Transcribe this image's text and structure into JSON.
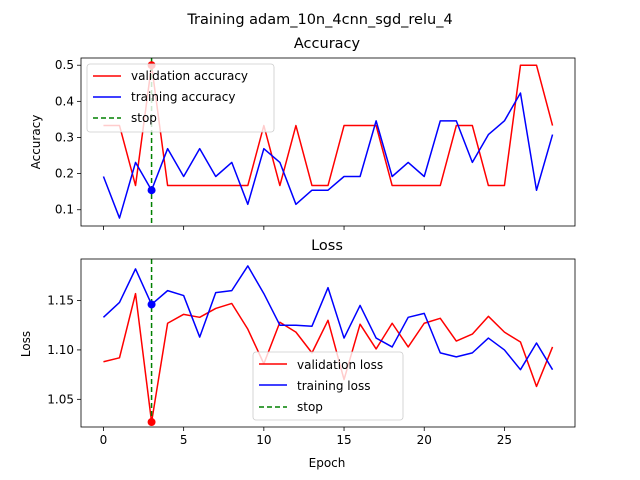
{
  "figure": {
    "suptitle": "Training adam_10n_4cnn_sgd_relu_4"
  },
  "chart_data": [
    {
      "type": "line",
      "title": "Accuracy",
      "xlabel": "",
      "ylabel": "Accuracy",
      "xlim": [
        -1.4,
        29.4
      ],
      "ylim": [
        0.055,
        0.52
      ],
      "xticks": [
        0,
        5,
        10,
        15,
        20,
        25
      ],
      "xtick_labels_visible": false,
      "yticks": [
        0.1,
        0.2,
        0.3,
        0.4,
        0.5
      ],
      "ytick_labels": [
        "0.1",
        "0.2",
        "0.3",
        "0.4",
        "0.5"
      ],
      "grid": false,
      "legend_loc": "upper-left",
      "x": [
        0,
        1,
        2,
        3,
        4,
        5,
        6,
        7,
        8,
        9,
        10,
        11,
        12,
        13,
        14,
        15,
        16,
        17,
        18,
        19,
        20,
        21,
        22,
        23,
        24,
        25,
        26,
        27,
        28
      ],
      "series": [
        {
          "name": "validation accuracy",
          "color": "#ff0000",
          "values": [
            0.333,
            0.333,
            0.167,
            0.5,
            0.167,
            0.167,
            0.167,
            0.167,
            0.167,
            0.167,
            0.333,
            0.167,
            0.333,
            0.167,
            0.167,
            0.333,
            0.333,
            0.333,
            0.167,
            0.167,
            0.167,
            0.167,
            0.333,
            0.333,
            0.167,
            0.167,
            0.5,
            0.5,
            0.333
          ]
        },
        {
          "name": "training accuracy",
          "color": "#0000ff",
          "values": [
            0.192,
            0.077,
            0.231,
            0.154,
            0.269,
            0.192,
            0.269,
            0.192,
            0.231,
            0.115,
            0.269,
            0.231,
            0.115,
            0.154,
            0.154,
            0.192,
            0.192,
            0.346,
            0.192,
            0.231,
            0.192,
            0.346,
            0.346,
            0.231,
            0.308,
            0.346,
            0.423,
            0.154,
            0.308
          ]
        }
      ],
      "stop": {
        "name": "stop",
        "x": 3,
        "color": "#008000"
      },
      "markers": [
        {
          "x": 3,
          "y": 0.5,
          "color": "#ff0000"
        },
        {
          "x": 3,
          "y": 0.154,
          "color": "#0000ff"
        }
      ]
    },
    {
      "type": "line",
      "title": "Loss",
      "xlabel": "Epoch",
      "ylabel": "Loss",
      "xlim": [
        -1.4,
        29.4
      ],
      "ylim": [
        1.022,
        1.192
      ],
      "xticks": [
        0,
        5,
        10,
        15,
        20,
        25
      ],
      "xtick_labels": [
        "0",
        "5",
        "10",
        "15",
        "20",
        "25"
      ],
      "yticks": [
        1.05,
        1.1,
        1.15
      ],
      "ytick_labels": [
        "1.05",
        "1.10",
        "1.15"
      ],
      "grid": false,
      "legend_loc": "lower-center",
      "x": [
        0,
        1,
        2,
        3,
        4,
        5,
        6,
        7,
        8,
        9,
        10,
        11,
        12,
        13,
        14,
        15,
        16,
        17,
        18,
        19,
        20,
        21,
        22,
        23,
        24,
        25,
        26,
        27,
        28
      ],
      "series": [
        {
          "name": "validation loss",
          "color": "#ff0000",
          "values": [
            1.088,
            1.092,
            1.157,
            1.027,
            1.127,
            1.136,
            1.133,
            1.142,
            1.147,
            1.121,
            1.086,
            1.128,
            1.118,
            1.097,
            1.13,
            1.07,
            1.126,
            1.101,
            1.127,
            1.103,
            1.127,
            1.132,
            1.109,
            1.116,
            1.134,
            1.118,
            1.108,
            1.063,
            1.103
          ]
        },
        {
          "name": "training loss",
          "color": "#0000ff",
          "values": [
            1.133,
            1.148,
            1.182,
            1.146,
            1.16,
            1.155,
            1.113,
            1.158,
            1.16,
            1.185,
            1.157,
            1.125,
            1.125,
            1.124,
            1.163,
            1.112,
            1.145,
            1.112,
            1.103,
            1.133,
            1.137,
            1.097,
            1.093,
            1.097,
            1.112,
            1.1,
            1.08,
            1.107,
            1.08
          ]
        }
      ],
      "stop": {
        "name": "stop",
        "x": 3,
        "color": "#008000"
      },
      "markers": [
        {
          "x": 3,
          "y": 1.027,
          "color": "#ff0000"
        },
        {
          "x": 3,
          "y": 1.146,
          "color": "#0000ff"
        }
      ]
    }
  ]
}
